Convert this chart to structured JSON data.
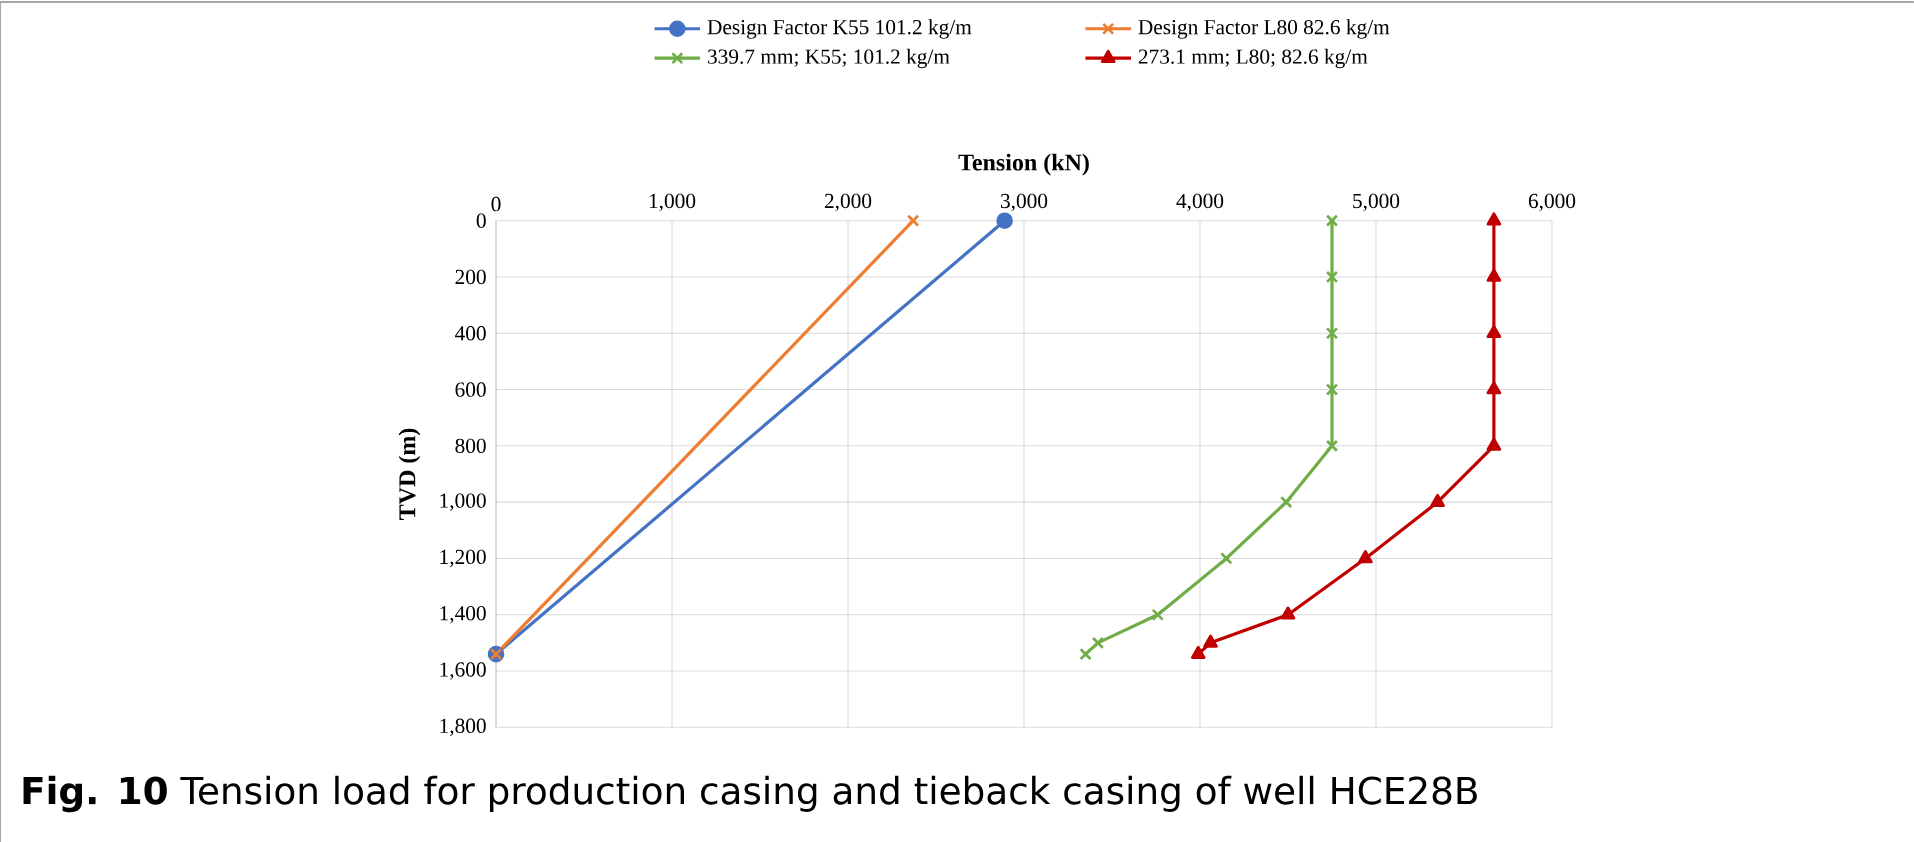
{
  "chart_data": {
    "type": "line",
    "xlabel": "Tension (kN)",
    "ylabel": "TVD (m)",
    "xlim": [
      0,
      6000
    ],
    "xticks": [
      {
        "value": 0,
        "label": "0"
      },
      {
        "value": 1000,
        "label": "1,000"
      },
      {
        "value": 2000,
        "label": "2,000"
      },
      {
        "value": 3000,
        "label": "3,000"
      },
      {
        "value": 4000,
        "label": "4,000"
      },
      {
        "value": 5000,
        "label": "5,000"
      },
      {
        "value": 6000,
        "label": "6,000"
      }
    ],
    "ylim": [
      1800,
      0
    ],
    "yticks": [
      {
        "value": 0,
        "label": "0"
      },
      {
        "value": 200,
        "label": "200"
      },
      {
        "value": 400,
        "label": "400"
      },
      {
        "value": 600,
        "label": "600"
      },
      {
        "value": 800,
        "label": "800"
      },
      {
        "value": 1000,
        "label": "1,000"
      },
      {
        "value": 1200,
        "label": "1,200"
      },
      {
        "value": 1400,
        "label": "1,400"
      },
      {
        "value": 1600,
        "label": "1,600"
      },
      {
        "value": 1800,
        "label": "1,800"
      }
    ],
    "grid": true,
    "legend": "top",
    "series": [
      {
        "name": "Design Factor K55 101.2 kg/m",
        "color": "#4472c4",
        "marker": "circle",
        "x": [
          2890,
          0
        ],
        "values": [
          0,
          1540
        ]
      },
      {
        "name": "Design Factor L80 82.6 kg/m",
        "color": "#ed7d31",
        "marker": "cross",
        "x": [
          2370,
          0
        ],
        "values": [
          0,
          1540
        ]
      },
      {
        "name": "339.7 mm; K55; 101.2 kg/m",
        "color": "#70ad47",
        "marker": "cross",
        "x": [
          4750,
          4750,
          4750,
          4750,
          4750,
          4490,
          4150,
          3760,
          3420,
          3350
        ],
        "values": [
          0,
          200,
          400,
          600,
          800,
          1000,
          1200,
          1400,
          1500,
          1540
        ]
      },
      {
        "name": "273.1 mm; L80; 82.6 kg/m",
        "color": "#c00000",
        "marker": "triangle",
        "x": [
          5670,
          5670,
          5670,
          5670,
          5670,
          5350,
          4940,
          4500,
          4060,
          3990
        ],
        "values": [
          0,
          200,
          400,
          600,
          800,
          1000,
          1200,
          1400,
          1500,
          1540
        ]
      }
    ],
    "annotations": [
      "**Fig. 10** Tension load for production casing and tieback casing of well HCE28B"
    ]
  }
}
